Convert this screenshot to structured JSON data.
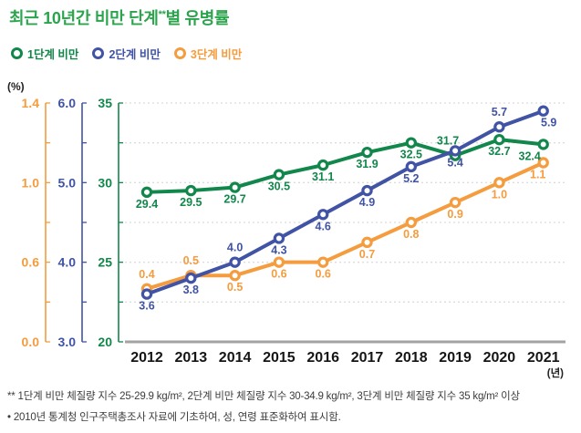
{
  "title": {
    "prefix": "최근 10년간 비만 단계",
    "superscript": "**",
    "suffix": "별 유병률"
  },
  "colors": {
    "title_green": "#2CA44D",
    "stage1_green": "#12874B",
    "stage2_blue": "#4053A4",
    "stage3_orange": "#F49C3E",
    "gridline": "#DCDCDC",
    "x_axis_line": "#A3A3A3",
    "year_text": "#151515"
  },
  "legend": {
    "items": [
      {
        "label": "1단계 비만",
        "color": "#12874B"
      },
      {
        "label": "2단계 비만",
        "color": "#4053A4"
      },
      {
        "label": "3단계 비만",
        "color": "#F49C3E"
      }
    ]
  },
  "y_unit_label": "(%)",
  "chart_data": {
    "type": "line",
    "x": [
      "2012",
      "2013",
      "2014",
      "2015",
      "2016",
      "2017",
      "2018",
      "2019",
      "2020",
      "2021"
    ],
    "x_unit": "(년)",
    "grid": "dotted horizontal",
    "legend_position": "top-left",
    "y_axes": [
      {
        "id": "stage3",
        "color": "#F49C3E",
        "tick_labels": [
          "1.4",
          "1.0",
          "0.6",
          "0.0"
        ],
        "tick_values": [
          1.4,
          1.0,
          0.6,
          0.0
        ]
      },
      {
        "id": "stage2",
        "color": "#4053A4",
        "tick_labels": [
          "6.0",
          "5.0",
          "4.0",
          "3.0"
        ],
        "tick_values": [
          6.0,
          5.0,
          4.0,
          3.0
        ]
      },
      {
        "id": "stage1",
        "color": "#12874B",
        "tick_labels": [
          "35",
          "30",
          "25",
          "20"
        ],
        "tick_values": [
          35,
          30,
          25,
          20
        ]
      }
    ],
    "gridline_values_on_stage1_axis": [
      35,
      32.5,
      30,
      27.5,
      25,
      22.5
    ],
    "series": [
      {
        "name": "3단계 비만",
        "axis": "stage3",
        "color": "#F49C3E",
        "values": [
          0.4,
          0.5,
          0.5,
          0.6,
          0.6,
          0.7,
          0.8,
          0.9,
          1.0,
          1.1
        ],
        "labels": [
          "0.4",
          "0.5",
          "0.5",
          "0.6",
          "0.6",
          "0.7",
          "0.8",
          "0.9",
          "1.0",
          "1.1"
        ],
        "label_side": [
          "above",
          "above",
          "below",
          "below",
          "below",
          "below",
          "below",
          "below",
          "below",
          "below"
        ],
        "label_dx": [
          0,
          0,
          0,
          0,
          0,
          0,
          0,
          0,
          0,
          -6
        ]
      },
      {
        "name": "1단계 비만",
        "axis": "stage1",
        "color": "#12874B",
        "values": [
          29.4,
          29.5,
          29.7,
          30.5,
          31.1,
          31.9,
          32.5,
          31.7,
          32.7,
          32.4
        ],
        "labels": [
          "29.4",
          "29.5",
          "29.7",
          "30.5",
          "31.1",
          "31.9",
          "32.5",
          "31.7",
          "32.7",
          "32.4"
        ],
        "label_side": [
          "below",
          "below",
          "below",
          "below",
          "below",
          "below",
          "below",
          "above",
          "below",
          "below"
        ],
        "label_dx": [
          0,
          0,
          0,
          0,
          0,
          0,
          0,
          -8,
          0,
          -15
        ]
      },
      {
        "name": "2단계 비만",
        "axis": "stage2",
        "color": "#4053A4",
        "values": [
          3.6,
          3.8,
          4.0,
          4.3,
          4.6,
          4.9,
          5.2,
          5.4,
          5.7,
          5.9
        ],
        "labels": [
          "3.6",
          "3.8",
          "4.0",
          "4.3",
          "4.6",
          "4.9",
          "5.2",
          "5.4",
          "5.7",
          "5.9"
        ],
        "label_side": [
          "below",
          "below",
          "above",
          "below",
          "below",
          "below",
          "below",
          "below",
          "above",
          "below"
        ],
        "label_dx": [
          0,
          0,
          0,
          0,
          0,
          0,
          0,
          0,
          0,
          6
        ]
      }
    ]
  },
  "footnotes": [
    "** 1단계 비만 체질량 지수 25-29.9 kg/m², 2단계 비만 체질량 지수 30-34.9 kg/m², 3단계 비만 체질량 지수 35 kg/m² 이상",
    "• 2010년 통계청 인구주택총조사 자료에 기초하여, 성, 연령 표준화하여 표시함."
  ]
}
